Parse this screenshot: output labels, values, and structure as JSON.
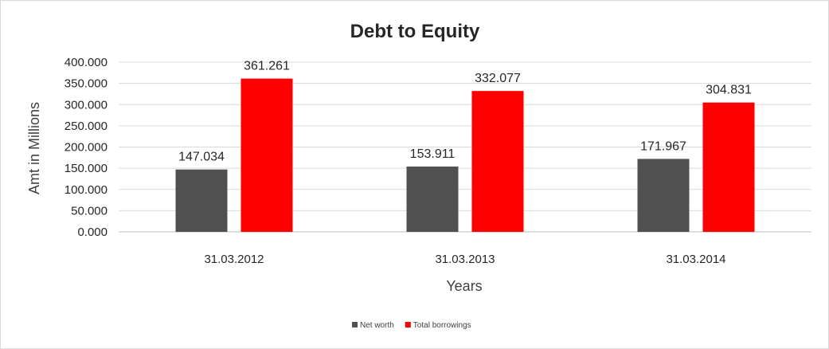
{
  "chart_data": {
    "type": "bar",
    "title": "Debt to Equity",
    "xlabel": "Years",
    "ylabel": "Amt in Millions",
    "categories": [
      "31.03.2012",
      "31.03.2013",
      "31.03.2014"
    ],
    "series": [
      {
        "name": "Net worth",
        "values": [
          147.034,
          153.911,
          171.967
        ],
        "color": "#505050",
        "labels": [
          "147.034",
          "153.911",
          "171.967"
        ]
      },
      {
        "name": "Total borrowings",
        "values": [
          361.261,
          332.077,
          304.831
        ],
        "color": "#ff0000",
        "labels": [
          "361.261",
          "332.077",
          "304.831"
        ]
      }
    ],
    "ylim": [
      0,
      400
    ],
    "yticks": [
      0,
      50,
      100,
      150,
      200,
      250,
      300,
      350,
      400
    ],
    "ytick_labels": [
      "0.000",
      "50.000",
      "100.000",
      "150.000",
      "200.000",
      "250.000",
      "300.000",
      "350.000",
      "400.000"
    ],
    "grid": true,
    "legend_position": "bottom"
  }
}
